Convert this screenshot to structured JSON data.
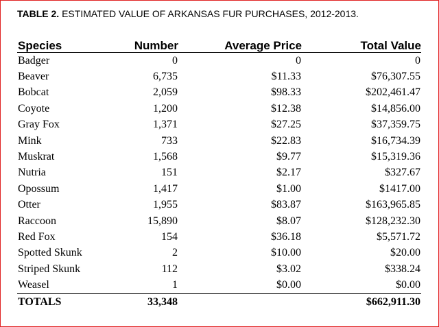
{
  "title": {
    "label": "TABLE 2.",
    "text": "ESTIMATED VALUE OF ARKANSAS FUR PURCHASES, 2012-2013."
  },
  "table": {
    "headers": [
      "Species",
      "Number",
      "Average Price",
      "Total Value"
    ],
    "rows": [
      [
        "Badger",
        "0",
        "0",
        "0"
      ],
      [
        "Beaver",
        "6,735",
        "$11.33",
        "$76,307.55"
      ],
      [
        "Bobcat",
        "2,059",
        "$98.33",
        "$202,461.47"
      ],
      [
        "Coyote",
        "1,200",
        "$12.38",
        "$14,856.00"
      ],
      [
        "Gray Fox",
        "1,371",
        "$27.25",
        "$37,359.75"
      ],
      [
        "Mink",
        "733",
        "$22.83",
        "$16,734.39"
      ],
      [
        "Muskrat",
        "1,568",
        "$9.77",
        "$15,319.36"
      ],
      [
        "Nutria",
        "151",
        "$2.17",
        "$327.67"
      ],
      [
        "Opossum",
        "1,417",
        "$1.00",
        "$1417.00"
      ],
      [
        "Otter",
        "1,955",
        "$83.87",
        "$163,965.85"
      ],
      [
        "Raccoon",
        "15,890",
        "$8.07",
        "$128,232.30"
      ],
      [
        "Red Fox",
        "154",
        "$36.18",
        "$5,571.72"
      ],
      [
        "Spotted Skunk",
        "2",
        "$10.00",
        "$20.00"
      ],
      [
        "Striped Skunk",
        "112",
        "$3.02",
        "$338.24"
      ],
      [
        "Weasel",
        "1",
        "$0.00",
        "$0.00"
      ]
    ],
    "totals": [
      "TOTALS",
      "33,348",
      "",
      "$662,911.30"
    ]
  }
}
